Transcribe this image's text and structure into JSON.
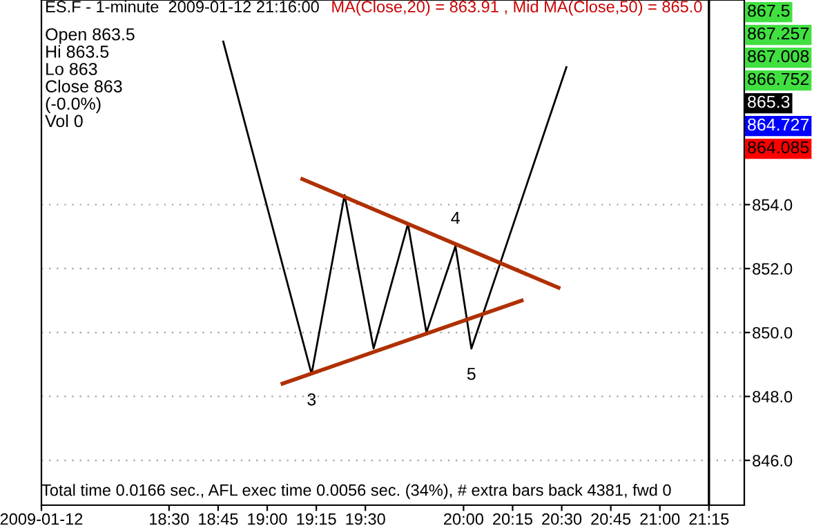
{
  "chart_data": {
    "type": "line",
    "title": "ES.F - 1-minute  2009-01-12 21:16:00",
    "subtitle": "MA(Close,20) = 863.91 , Mid MA(Close,50) = 865.0",
    "x": [
      18.776,
      19.226,
      19.394,
      19.542,
      19.717,
      19.811,
      19.959,
      20.04,
      20.524
    ],
    "series": [
      {
        "color": "#000000",
        "values": [
          859.1,
          848.7,
          854.3,
          849.5,
          853.4,
          850.0,
          852.7,
          849.5,
          858.3
        ]
      },
      {
        "color": "#b03000",
        "x": [
          19.179,
          20.484
        ],
        "values": [
          854.8,
          851.4
        ]
      },
      {
        "color": "#b03000",
        "x": [
          19.078,
          20.296
        ],
        "values": [
          848.4,
          851.0
        ]
      }
    ],
    "xlim": [
      17.85,
      21.43
    ],
    "ylim": [
      844.6,
      860.4
    ],
    "xticks": [
      {
        "value": 17.85,
        "label": "2009-01-12"
      },
      {
        "value": 18.5,
        "label": "18:30"
      },
      {
        "value": 18.75,
        "label": "18:45"
      },
      {
        "value": 19.0,
        "label": "19:00"
      },
      {
        "value": 19.25,
        "label": "19:15"
      },
      {
        "value": 19.5,
        "label": "19:30"
      },
      {
        "value": 20.0,
        "label": "20:00"
      },
      {
        "value": 20.25,
        "label": "20:15"
      },
      {
        "value": 20.5,
        "label": "20:30"
      },
      {
        "value": 20.75,
        "label": "20:45"
      },
      {
        "value": 21.0,
        "label": "21:00"
      },
      {
        "value": 21.25,
        "label": "21:15"
      }
    ],
    "yticks": [
      {
        "value": 846,
        "label": "846.0"
      },
      {
        "value": 848,
        "label": "848.0"
      },
      {
        "value": 850,
        "label": "850.0"
      },
      {
        "value": 852,
        "label": "852.0"
      },
      {
        "value": 854,
        "label": "854.0"
      }
    ],
    "grid": "y",
    "ref_lines": [
      {
        "axis": "x",
        "value": 21.25,
        "color": "#000000"
      }
    ],
    "annotations": [
      {
        "text": "3",
        "x": 19.226,
        "y": 848.7
      },
      {
        "text": "4",
        "x": 19.959,
        "y": 852.7
      },
      {
        "text": "5",
        "x": 20.04,
        "y": 849.5
      },
      "Open 863.5\nHi 863.5\nLo 863\nClose 863\n(-0.0%)\nVol 0",
      "Total time 0.0166 sec., AFL exec time 0.0056 sec. (34%), # extra bars back 4381, fwd 0",
      "867.5",
      "867.257",
      "867.008",
      "866.752",
      "865.3",
      "864.727",
      "864.085"
    ]
  }
}
